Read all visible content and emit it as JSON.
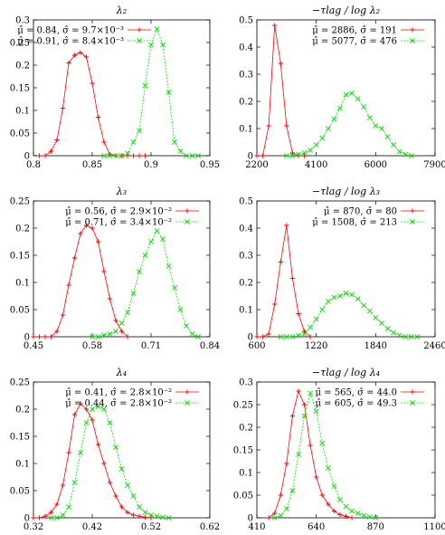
{
  "chart_data": [
    {
      "type": "line",
      "title": "λ₂",
      "xlim": [
        0.8,
        0.95
      ],
      "ylim": [
        0,
        0.3
      ],
      "xticks": [
        0.8,
        0.85,
        0.9,
        0.95
      ],
      "xtick_labels": [
        "0.8",
        "0.85",
        "0.9",
        "0.95"
      ],
      "yticks": [
        0,
        0.05,
        0.1,
        0.15,
        0.2,
        0.25,
        0.3
      ],
      "ytick_labels": [
        "0",
        "0.05",
        "0.1",
        "0.15",
        "0.2",
        "0.25",
        "0.3"
      ],
      "legend_position": "top-left",
      "series": [
        {
          "name": "μ̂ = 0.84, σ̂ = 9.7×10⁻³",
          "color": "#ff0000",
          "marker": "plus",
          "x": [
            0.805,
            0.81,
            0.815,
            0.82,
            0.825,
            0.83,
            0.835,
            0.84,
            0.845,
            0.85,
            0.855,
            0.86,
            0.865,
            0.87,
            0.875,
            0.88,
            0.885,
            0.89,
            0.895
          ],
          "y": [
            0,
            0,
            0.01,
            0.035,
            0.105,
            0.205,
            0.222,
            0.228,
            0.218,
            0.16,
            0.085,
            0.03,
            0.003,
            0,
            0,
            0,
            0,
            0,
            0
          ]
        },
        {
          "name": "μ̂ = 0.91, σ̂ = 8.4×10⁻³",
          "color": "#00e000",
          "marker": "cross",
          "x": [
            0.86,
            0.865,
            0.87,
            0.875,
            0.88,
            0.885,
            0.89,
            0.895,
            0.9,
            0.905,
            0.91,
            0.915,
            0.92,
            0.925,
            0.93,
            0.935,
            0.94
          ],
          "y": [
            0,
            0,
            0,
            0,
            0.005,
            0.03,
            0.055,
            0.155,
            0.245,
            0.28,
            0.245,
            0.14,
            0.03,
            0.01,
            0,
            0,
            0
          ]
        }
      ]
    },
    {
      "type": "line",
      "title": "−τlag / log λ₂",
      "xlim": [
        2200,
        7900
      ],
      "ylim": [
        0,
        0.5
      ],
      "xticks": [
        2200,
        4100,
        6000,
        7900
      ],
      "xtick_labels": [
        "2200",
        "4100",
        "6000",
        "7900"
      ],
      "yticks": [
        0,
        0.1,
        0.2,
        0.3,
        0.4,
        0.5
      ],
      "ytick_labels": [
        "0",
        "0.1",
        "0.2",
        "0.3",
        "0.4",
        "0.5"
      ],
      "legend_position": "top-right",
      "series": [
        {
          "name": "μ̂ = 2886, σ̂ = 191",
          "color": "#ff0000",
          "marker": "plus",
          "x": [
            2200,
            2390,
            2580,
            2770,
            2960,
            3150,
            3340,
            3530,
            3720
          ],
          "y": [
            0,
            0,
            0.11,
            0.48,
            0.34,
            0.11,
            0.01,
            0,
            0
          ]
        },
        {
          "name": "μ̂ = 5077, σ̂ = 476",
          "color": "#00e000",
          "marker": "cross",
          "x": [
            3150,
            3340,
            3530,
            3720,
            3910,
            4100,
            4290,
            4480,
            4670,
            4860,
            5050,
            5240,
            5430,
            5620,
            5810,
            6000,
            6190,
            6380,
            6570,
            6760,
            6950,
            7140
          ],
          "y": [
            0,
            0,
            0.005,
            0.01,
            0.02,
            0.04,
            0.065,
            0.1,
            0.135,
            0.175,
            0.225,
            0.23,
            0.21,
            0.18,
            0.14,
            0.11,
            0.1,
            0.07,
            0.04,
            0.015,
            0.005,
            0
          ]
        }
      ]
    },
    {
      "type": "line",
      "title": "λ₃",
      "xlim": [
        0.45,
        0.84
      ],
      "ylim": [
        0,
        0.25
      ],
      "xticks": [
        0.45,
        0.58,
        0.71,
        0.84
      ],
      "xtick_labels": [
        "0.45",
        "0.58",
        "0.71",
        "0.84"
      ],
      "yticks": [
        0,
        0.05,
        0.1,
        0.15,
        0.2,
        0.25
      ],
      "ytick_labels": [
        "0",
        "0.05",
        "0.1",
        "0.15",
        "0.2",
        "0.25"
      ],
      "legend_position": "top-right",
      "series": [
        {
          "name": "μ̂ = 0.56, σ̂ = 2.9×10⁻²",
          "color": "#ff0000",
          "marker": "plus",
          "x": [
            0.45,
            0.463,
            0.476,
            0.489,
            0.502,
            0.515,
            0.528,
            0.541,
            0.554,
            0.567,
            0.58,
            0.593,
            0.606,
            0.619,
            0.632,
            0.645,
            0.658
          ],
          "y": [
            0,
            0,
            0,
            0,
            0.01,
            0.04,
            0.095,
            0.145,
            0.19,
            0.205,
            0.2,
            0.175,
            0.12,
            0.07,
            0.03,
            0.01,
            0
          ]
        },
        {
          "name": "μ̂ = 0.71, σ̂ = 3.4×10⁻²",
          "color": "#00e000",
          "marker": "cross",
          "x": [
            0.58,
            0.593,
            0.606,
            0.619,
            0.632,
            0.645,
            0.658,
            0.671,
            0.684,
            0.697,
            0.71,
            0.723,
            0.736,
            0.749,
            0.762,
            0.775,
            0.788,
            0.801,
            0.814
          ],
          "y": [
            0,
            0,
            0.003,
            0.005,
            0.01,
            0.025,
            0.045,
            0.08,
            0.12,
            0.15,
            0.175,
            0.195,
            0.18,
            0.13,
            0.09,
            0.05,
            0.02,
            0.005,
            0
          ]
        }
      ]
    },
    {
      "type": "line",
      "title": "−τlag / log λ₃",
      "xlim": [
        600,
        2460
      ],
      "ylim": [
        0,
        0.5
      ],
      "xticks": [
        600,
        1220,
        1840,
        2460
      ],
      "xtick_labels": [
        "600",
        "1220",
        "1840",
        "2460"
      ],
      "yticks": [
        0,
        0.1,
        0.2,
        0.3,
        0.4,
        0.5
      ],
      "ytick_labels": [
        "0",
        "0.1",
        "0.2",
        "0.3",
        "0.4",
        "0.5"
      ],
      "legend_position": "top-right",
      "series": [
        {
          "name": "μ̂ = 870, σ̂ = 80",
          "color": "#ff0000",
          "marker": "plus",
          "x": [
            600,
            662,
            724,
            786,
            848,
            910,
            972,
            1034,
            1096,
            1158
          ],
          "y": [
            0,
            0,
            0.01,
            0.12,
            0.275,
            0.41,
            0.215,
            0.085,
            0.02,
            0
          ]
        },
        {
          "name": "μ̂ = 1508, σ̂ = 213",
          "color": "#00e000",
          "marker": "cross",
          "x": [
            848,
            910,
            972,
            1034,
            1096,
            1158,
            1220,
            1282,
            1344,
            1406,
            1468,
            1530,
            1592,
            1654,
            1716,
            1778,
            1840,
            1902,
            1964,
            2026,
            2088,
            2150,
            2212,
            2274
          ],
          "y": [
            0,
            0,
            0,
            0.005,
            0.01,
            0.035,
            0.065,
            0.1,
            0.13,
            0.145,
            0.15,
            0.16,
            0.155,
            0.14,
            0.115,
            0.095,
            0.07,
            0.05,
            0.03,
            0.015,
            0.005,
            0,
            0,
            0
          ]
        }
      ]
    },
    {
      "type": "line",
      "title": "λ₄",
      "xlim": [
        0.32,
        0.62
      ],
      "ylim": [
        0,
        0.25
      ],
      "xticks": [
        0.32,
        0.42,
        0.52,
        0.62
      ],
      "xtick_labels": [
        "0.32",
        "0.42",
        "0.52",
        "0.62"
      ],
      "yticks": [
        0,
        0.05,
        0.1,
        0.15,
        0.2,
        0.25
      ],
      "ytick_labels": [
        "0",
        "0.05",
        "0.1",
        "0.15",
        "0.2",
        "0.25"
      ],
      "legend_position": "top-right",
      "series": [
        {
          "name": "μ̂ = 0.41, σ̂ = 2.8×10⁻²",
          "color": "#ff0000",
          "marker": "plus",
          "x": [
            0.32,
            0.33,
            0.34,
            0.35,
            0.36,
            0.37,
            0.38,
            0.39,
            0.4,
            0.41,
            0.42,
            0.43,
            0.44,
            0.45,
            0.46,
            0.47,
            0.48,
            0.49,
            0.5,
            0.51,
            0.52
          ],
          "y": [
            0,
            0,
            0.003,
            0.01,
            0.025,
            0.06,
            0.12,
            0.19,
            0.21,
            0.2,
            0.18,
            0.135,
            0.1,
            0.065,
            0.04,
            0.02,
            0.01,
            0.005,
            0.003,
            0.001,
            0
          ]
        },
        {
          "name": "μ̂ = 0.44, σ̂ = 2.8×10⁻²",
          "color": "#00e000",
          "marker": "cross",
          "x": [
            0.35,
            0.36,
            0.37,
            0.38,
            0.39,
            0.4,
            0.41,
            0.42,
            0.43,
            0.44,
            0.45,
            0.46,
            0.47,
            0.48,
            0.49,
            0.5,
            0.51,
            0.52,
            0.53,
            0.54,
            0.55
          ],
          "y": [
            0,
            0,
            0.005,
            0.02,
            0.065,
            0.12,
            0.175,
            0.2,
            0.205,
            0.2,
            0.175,
            0.13,
            0.09,
            0.06,
            0.04,
            0.02,
            0.01,
            0.005,
            0.003,
            0.001,
            0
          ]
        }
      ]
    },
    {
      "type": "line",
      "title": "−τlag / log λ₄",
      "xlim": [
        410,
        1100
      ],
      "ylim": [
        0,
        0.3
      ],
      "xticks": [
        410,
        640,
        870,
        1100
      ],
      "xtick_labels": [
        "410",
        "640",
        "870",
        "1100"
      ],
      "yticks": [
        0,
        0.05,
        0.1,
        0.15,
        0.2,
        0.25,
        0.3
      ],
      "ytick_labels": [
        "0",
        "0.05",
        "0.1",
        "0.15",
        "0.2",
        "0.25",
        "0.3"
      ],
      "legend_position": "top-right",
      "series": [
        {
          "name": "μ̂ = 565, σ̂ = 44.0",
          "color": "#ff0000",
          "marker": "plus",
          "x": [
            456,
            479,
            502,
            525,
            548,
            571,
            594,
            617,
            640,
            663,
            686,
            709,
            732,
            755,
            778
          ],
          "y": [
            0,
            0.01,
            0.05,
            0.12,
            0.225,
            0.28,
            0.25,
            0.16,
            0.09,
            0.05,
            0.03,
            0.015,
            0.007,
            0.003,
            0
          ]
        },
        {
          "name": "μ̂ = 605, σ̂ = 49.3",
          "color": "#00e000",
          "marker": "cross",
          "x": [
            479,
            502,
            525,
            548,
            571,
            594,
            617,
            640,
            663,
            686,
            709,
            732,
            755,
            778,
            801,
            824,
            847,
            870
          ],
          "y": [
            0,
            0.005,
            0.02,
            0.06,
            0.14,
            0.225,
            0.275,
            0.235,
            0.165,
            0.11,
            0.07,
            0.04,
            0.025,
            0.015,
            0.01,
            0.005,
            0.002,
            0
          ]
        }
      ]
    }
  ]
}
